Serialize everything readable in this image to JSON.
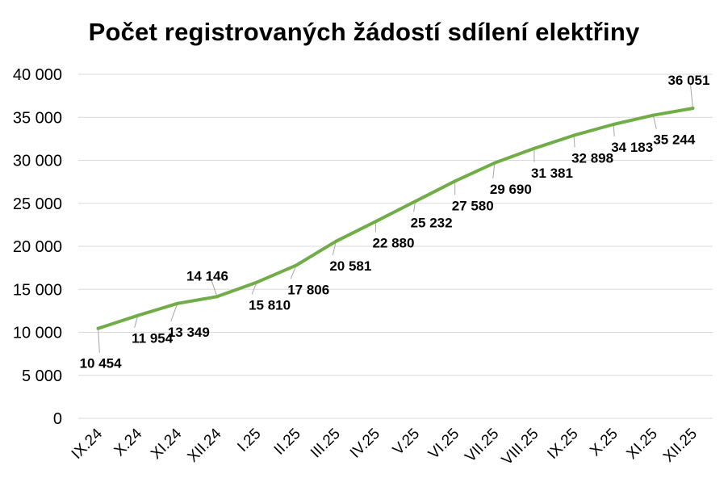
{
  "chart_data": {
    "type": "line",
    "title": "Počet registrovaných žádostí sdílení elektřiny",
    "xlabel": "",
    "ylabel": "",
    "categories": [
      "IX.24",
      "X.24",
      "XI.24",
      "XII.24",
      "I.25",
      "II.25",
      "III.25",
      "IV.25",
      "V.25",
      "VI.25",
      "VII.25",
      "VIII.25",
      "IX.25",
      "X.25",
      "XI.25",
      "XII.25"
    ],
    "series": [
      {
        "values": [
          10454,
          11954,
          13349,
          14146,
          15810,
          17806,
          20581,
          22880,
          25232,
          27580,
          29690,
          31381,
          32898,
          34183,
          35244,
          36051
        ],
        "color": "#70AD47"
      }
    ],
    "data_labels": [
      "10 454",
      "11 954",
      "13 349",
      "14 146",
      "15 810",
      "17 806",
      "20 581",
      "22 880",
      "25 232",
      "27 580",
      "29 690",
      "31 381",
      "32 898",
      "34 183",
      "35 244",
      "36 051"
    ],
    "ylim": [
      0,
      40000
    ],
    "yticks": [
      0,
      5000,
      10000,
      15000,
      20000,
      25000,
      30000,
      35000,
      40000
    ],
    "ytick_labels": [
      "0",
      "5 000",
      "10 000",
      "15 000",
      "20 000",
      "25 000",
      "30 000",
      "35 000",
      "40 000"
    ],
    "grid": true,
    "legend": "none",
    "colors": {
      "line": "#70AD47",
      "grid": "#D9D9D9",
      "leader": "#A6A6A6"
    }
  }
}
